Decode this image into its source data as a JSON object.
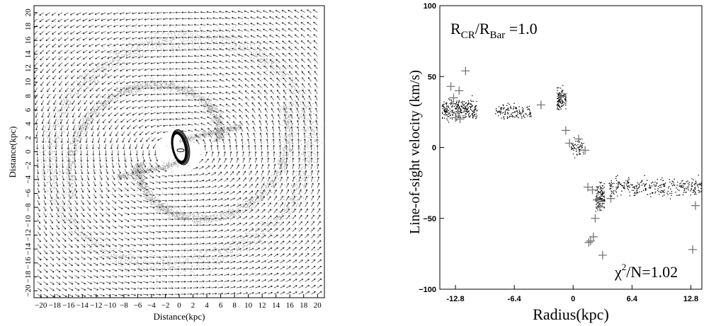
{
  "chart_data": [
    {
      "type": "vector_field",
      "xlabel": "Distance(kpc)",
      "ylabel": "Distance(kpc)",
      "xlim": [
        -21,
        21
      ],
      "ylim": [
        -21,
        21
      ],
      "x_ticks": [
        -20,
        -18,
        -16,
        -14,
        -12,
        -10,
        -8,
        -6,
        -4,
        -2,
        0,
        2,
        4,
        6,
        8,
        10,
        12,
        14,
        16,
        18,
        20
      ],
      "y_ticks": [
        -20,
        -18,
        -16,
        -14,
        -12,
        -10,
        -8,
        -6,
        -4,
        -2,
        0,
        2,
        4,
        6,
        8,
        10,
        12,
        14,
        16,
        18,
        20
      ],
      "x_tick_labels": [
        "−20",
        "−18",
        "−16",
        "−14",
        "−12",
        "−10",
        "−8",
        "−6",
        "−4",
        "−2",
        "0",
        "2",
        "4",
        "6",
        "8",
        "10",
        "12",
        "14",
        "16",
        "18",
        "20"
      ],
      "y_tick_labels": [
        "−20",
        "−18",
        "−16",
        "−14",
        "−12",
        "−10",
        "−8",
        "−6",
        "−4",
        "−2",
        "0",
        "2",
        "4",
        "6",
        "8",
        "10",
        "12",
        "14",
        "16",
        "18",
        "20"
      ],
      "description_colors": {
        "arrows": "#111111",
        "gas": "#555555"
      }
    },
    {
      "type": "scatter",
      "xlabel": "Radius(kpc)",
      "ylabel": "Line-of-sight velocity (km/s)",
      "xlim": [
        -14.5,
        14.0
      ],
      "ylim": [
        -100,
        100
      ],
      "x_ticks": [
        -12.8,
        -6.4,
        0,
        6.4,
        12.8
      ],
      "x_tick_labels": [
        "-12.8",
        "-6.4",
        "0",
        "6.4",
        "12.8"
      ],
      "y_ticks": [
        -100,
        -50,
        0,
        50,
        100
      ],
      "y_tick_labels": [
        "−100",
        "−50",
        "0",
        "50",
        "100"
      ],
      "annotations": {
        "ratio": {
          "r1": "R",
          "r1_sub": "CR",
          "slash": "/",
          "r2": "R",
          "r2_sub": "Bar",
          "value": " =1.0"
        },
        "chi": {
          "symbol": "χ",
          "sup": "2",
          "rest": "/N=1.02"
        }
      },
      "series": [
        {
          "marker": "cross",
          "x": [
            -13.3,
            -13.0,
            -12.5,
            -12.3,
            -11.7,
            -12.8,
            -12.4,
            -3.5,
            -1.3,
            -0.8,
            -0.4,
            0.6,
            1.3,
            1.6,
            2.1,
            2.6,
            2.9,
            2.4,
            2.2,
            3.2,
            1.9,
            1.7,
            4.1,
            13.3,
            13.0
          ],
          "y": [
            43,
            35,
            25,
            20,
            54,
            21,
            40,
            30,
            36,
            12,
            3,
            6,
            -2,
            -28,
            -30,
            -37,
            -42,
            -50,
            -63,
            -76,
            -66,
            -67,
            -36,
            -41,
            -72
          ]
        },
        {
          "marker": "dot",
          "segments": [
            {
              "x0": -14.3,
              "x1": -10.5,
              "y_center": 27,
              "spread": 7,
              "count": 260
            },
            {
              "x0": -8.5,
              "x1": -4.6,
              "y_center": 25,
              "spread": 5,
              "count": 130
            },
            {
              "x0": -1.8,
              "x1": -0.8,
              "y_center": 34,
              "spread": 9,
              "count": 110
            },
            {
              "x0": -0.3,
              "x1": 1.1,
              "y_center": 0,
              "spread": 6,
              "count": 60
            },
            {
              "x0": 2.4,
              "x1": 3.4,
              "y_center": -35,
              "spread": 9,
              "count": 120
            },
            {
              "x0": 3.8,
              "x1": 14.0,
              "y_center": -28,
              "spread": 6,
              "count": 320
            }
          ]
        }
      ]
    }
  ]
}
